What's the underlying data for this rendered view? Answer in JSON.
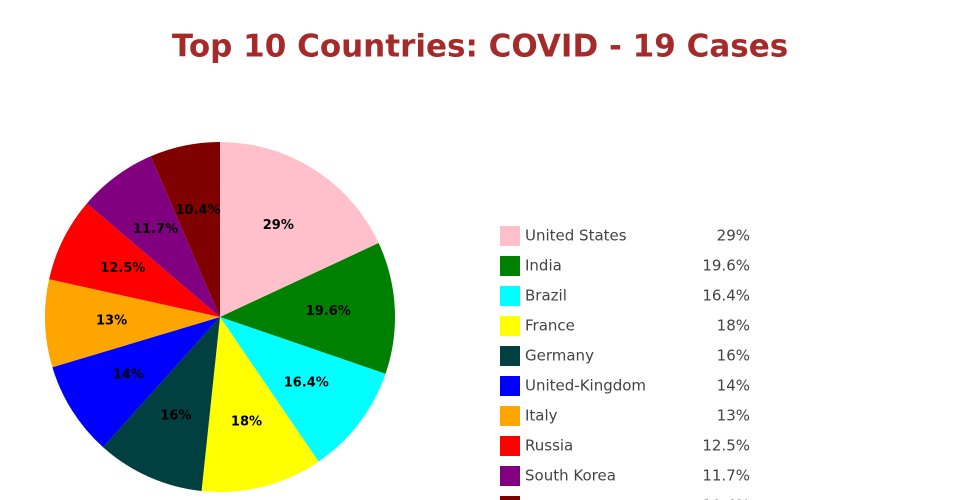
{
  "chart_data": {
    "type": "pie",
    "title": "Top 10 Countries: COVID - 19 Cases",
    "categories": [
      "United States",
      "India",
      "Brazil",
      "France",
      "Germany",
      "United-Kingdom",
      "Italy",
      "Russia",
      "South Korea",
      null
    ],
    "values": [
      29,
      19.6,
      16.4,
      18,
      16,
      14,
      13,
      12.5,
      11.7,
      10.4
    ],
    "value_labels": [
      "29%",
      "19.6%",
      "16.4%",
      "18%",
      "16%",
      "14%",
      "13%",
      "12.5%",
      "11.7%",
      "10.4%"
    ],
    "colors": [
      "#ffc0cb",
      "#008000",
      "#00ffff",
      "#ffff00",
      "#004040",
      "#0000ff",
      "#ffa500",
      "#ff0000",
      "#800080",
      "#800000"
    ],
    "legend": "right"
  }
}
